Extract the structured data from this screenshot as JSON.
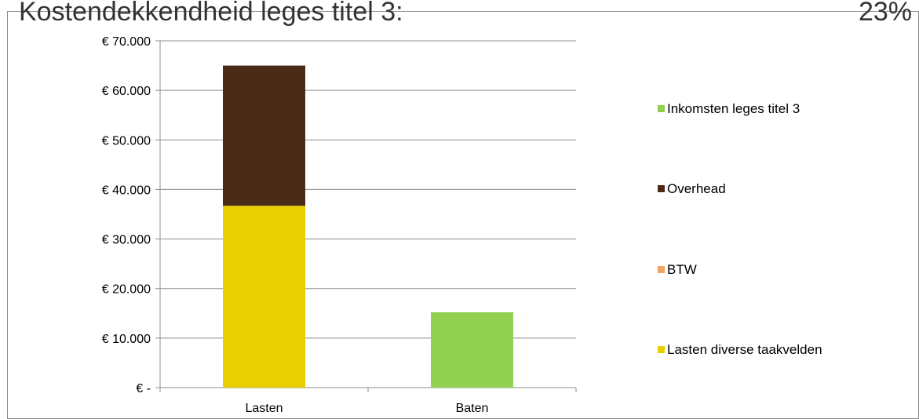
{
  "header": {
    "title": "Kostendekkendheid leges titel 3:",
    "percent": "23%"
  },
  "chart_data": {
    "type": "bar",
    "stacked": true,
    "categories": [
      "Lasten",
      "Baten"
    ],
    "series": [
      {
        "name": "Lasten diverse taakvelden",
        "values": [
          36700,
          0
        ],
        "color": "#e8d000"
      },
      {
        "name": "BTW",
        "values": [
          0,
          0
        ],
        "color": "#f4a460"
      },
      {
        "name": "Overhead",
        "values": [
          28300,
          0
        ],
        "color": "#4b2a17"
      },
      {
        "name": "Inkomsten leges titel 3",
        "values": [
          0,
          15200
        ],
        "color": "#92d050"
      }
    ],
    "y_ticks": [
      0,
      10000,
      20000,
      30000,
      40000,
      50000,
      60000,
      70000
    ],
    "y_tick_labels": [
      "€ -",
      "€ 10.000",
      "€ 20.000",
      "€ 30.000",
      "€ 40.000",
      "€ 50.000",
      "€ 60.000",
      "€ 70.000"
    ],
    "ylim": [
      0,
      70000
    ],
    "grid": true,
    "legend_position": "right",
    "legend_order": [
      "Inkomsten leges titel 3",
      "Overhead",
      "BTW",
      "Lasten diverse taakvelden"
    ],
    "gridline_color": "#8c8c8c",
    "axis_color": "#8c8c8c"
  }
}
